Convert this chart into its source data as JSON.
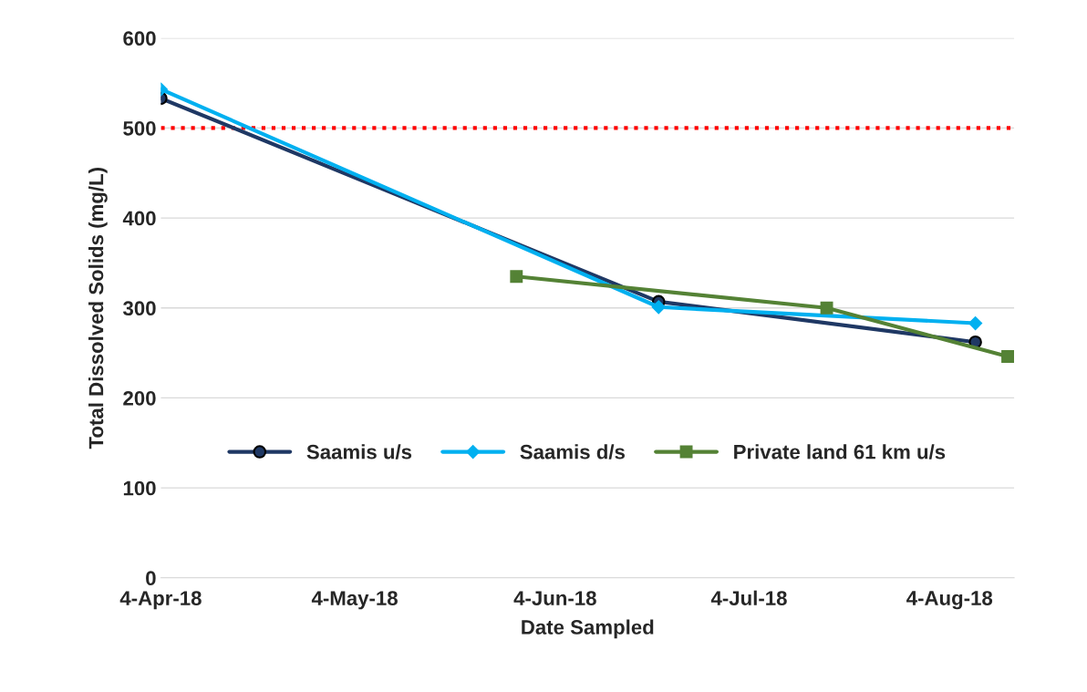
{
  "chart_data": {
    "type": "line",
    "xlabel": "Date Sampled",
    "ylabel": "Total Dissolved Solids (mg/L)",
    "series": [
      {
        "name": "Saamis u/s",
        "color": "#1f3864",
        "marker": "circle",
        "x": [
          "2018-04-04",
          "2018-06-20",
          "2018-08-08"
        ],
        "values": [
          533,
          307,
          262
        ]
      },
      {
        "name": "Saamis d/s",
        "color": "#00b0f0",
        "marker": "diamond",
        "x": [
          "2018-04-04",
          "2018-06-20",
          "2018-08-08"
        ],
        "values": [
          543,
          301,
          283
        ]
      },
      {
        "name": "Private land 61 km u/s",
        "color": "#548235",
        "marker": "square",
        "x": [
          "2018-05-29",
          "2018-07-16",
          "2018-08-13"
        ],
        "values": [
          335,
          300,
          246
        ]
      }
    ],
    "xlim": [
      "2018-04-04",
      "2018-08-14"
    ],
    "xticks": [
      {
        "value": "2018-04-04",
        "label": "4-Apr-18"
      },
      {
        "value": "2018-05-04",
        "label": "4-May-18"
      },
      {
        "value": "2018-06-04",
        "label": "4-Jun-18"
      },
      {
        "value": "2018-07-04",
        "label": "4-Jul-18"
      },
      {
        "value": "2018-08-04",
        "label": "4-Aug-18"
      }
    ],
    "ylim": [
      0,
      600
    ],
    "yticks": [
      0,
      100,
      200,
      300,
      400,
      500,
      600
    ],
    "ref_lines": [
      {
        "axis": "y",
        "value": 500,
        "color": "#ff0000",
        "line_style": "dotted"
      }
    ],
    "grid": "y",
    "legend": "bottom",
    "line_style": "solid"
  }
}
